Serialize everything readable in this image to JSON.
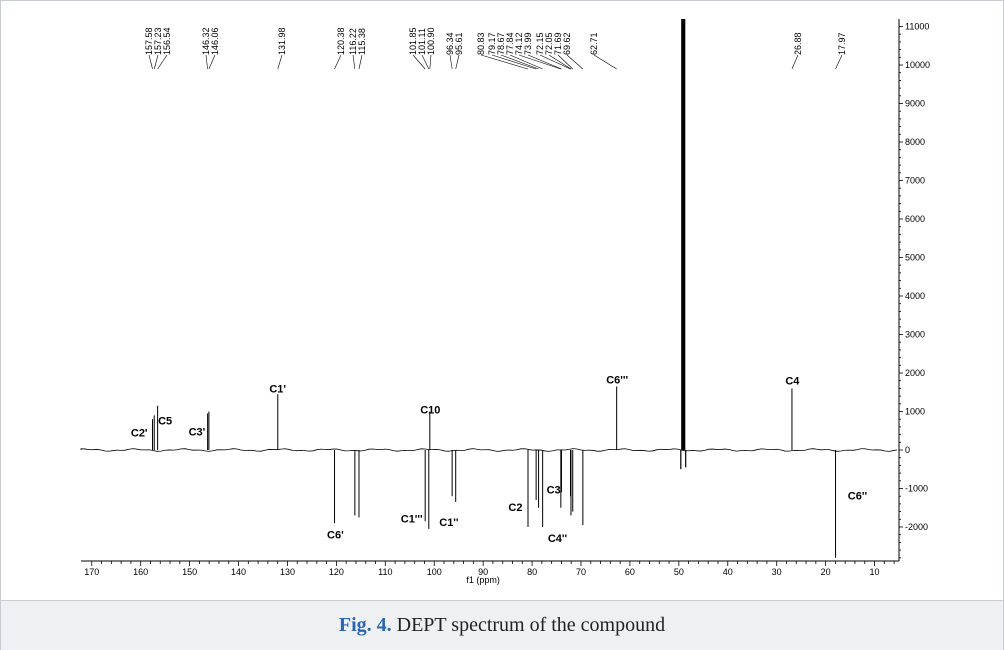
{
  "caption": {
    "figure_label": "Fig. 4.",
    "text": " DEPT spectrum of the compound"
  },
  "chart_data": {
    "type": "line",
    "title": "",
    "xlabel": "f1 (ppm)",
    "ylabel": "",
    "xlim": [
      172,
      5
    ],
    "ylim": [
      -3000,
      11200
    ],
    "x_ticks": [
      170,
      160,
      150,
      140,
      130,
      120,
      110,
      100,
      90,
      80,
      70,
      60,
      50,
      40,
      30,
      20,
      10
    ],
    "y_ticks": [
      11000,
      10000,
      9000,
      8000,
      7000,
      6000,
      5000,
      4000,
      3000,
      2000,
      1000,
      0,
      -1000,
      -2000
    ],
    "grid": false,
    "peak_list": [
      "157.58",
      "157.23",
      "156.54",
      "146.32",
      "146.06",
      "131.98",
      "120.38",
      "116.22",
      "115.38",
      "101.85",
      "101.11",
      "100.90",
      "96.34",
      "95.61",
      "80.83",
      "79.17",
      "78.67",
      "77.84",
      "74.12",
      "73.99",
      "72.15",
      "72.05",
      "71.69",
      "69.62",
      "62.71",
      "26.88",
      "17.97"
    ],
    "peaks": [
      {
        "ppm": 157.58,
        "intensity": 800
      },
      {
        "ppm": 157.23,
        "intensity": 900
      },
      {
        "ppm": 156.54,
        "intensity": 1150
      },
      {
        "ppm": 146.32,
        "intensity": 950
      },
      {
        "ppm": 146.06,
        "intensity": 1000
      },
      {
        "ppm": 131.98,
        "intensity": 1450
      },
      {
        "ppm": 120.38,
        "intensity": -1900
      },
      {
        "ppm": 116.22,
        "intensity": -1700
      },
      {
        "ppm": 115.38,
        "intensity": -1750
      },
      {
        "ppm": 101.85,
        "intensity": -1850
      },
      {
        "ppm": 101.11,
        "intensity": -2050
      },
      {
        "ppm": 100.9,
        "intensity": 1000
      },
      {
        "ppm": 96.34,
        "intensity": -1200
      },
      {
        "ppm": 95.61,
        "intensity": -1350
      },
      {
        "ppm": 80.83,
        "intensity": -2000
      },
      {
        "ppm": 79.17,
        "intensity": -1300
      },
      {
        "ppm": 78.67,
        "intensity": -1500
      },
      {
        "ppm": 77.84,
        "intensity": -2000
      },
      {
        "ppm": 74.12,
        "intensity": -1500
      },
      {
        "ppm": 73.99,
        "intensity": -1100
      },
      {
        "ppm": 72.15,
        "intensity": -1200
      },
      {
        "ppm": 72.05,
        "intensity": -1700
      },
      {
        "ppm": 71.69,
        "intensity": -1600
      },
      {
        "ppm": 69.62,
        "intensity": -1950
      },
      {
        "ppm": 62.71,
        "intensity": 1650
      },
      {
        "ppm": 26.88,
        "intensity": 1600
      },
      {
        "ppm": 17.97,
        "intensity": -2800
      }
    ],
    "solvent": [
      {
        "ppm": 49.4,
        "intensity": 11200
      },
      {
        "ppm": 49.1,
        "intensity": 11200
      },
      {
        "ppm": 48.8,
        "intensity": 11200
      },
      {
        "ppm": 49.6,
        "intensity": -500
      },
      {
        "ppm": 48.6,
        "intensity": -450
      }
    ],
    "annotations": [
      {
        "text": "C2'",
        "ppm": 160.3,
        "intensity": 350
      },
      {
        "text": "C5",
        "ppm": 155.0,
        "intensity": 660
      },
      {
        "text": "C3'",
        "ppm": 148.5,
        "intensity": 380
      },
      {
        "text": "C1'",
        "ppm": 132.0,
        "intensity": 1500
      },
      {
        "text": "C10",
        "ppm": 100.8,
        "intensity": 950
      },
      {
        "text": "C6'''",
        "ppm": 62.6,
        "intensity": 1730
      },
      {
        "text": "C4",
        "ppm": 26.8,
        "intensity": 1700
      },
      {
        "text": "C6'",
        "ppm": 120.2,
        "intensity": -2300
      },
      {
        "text": "C1'''",
        "ppm": 104.6,
        "intensity": -1880
      },
      {
        "text": "C1''",
        "ppm": 97.0,
        "intensity": -1980
      },
      {
        "text": "C2",
        "ppm": 83.4,
        "intensity": -1580
      },
      {
        "text": "C3",
        "ppm": 75.6,
        "intensity": -1130
      },
      {
        "text": "C4''",
        "ppm": 74.8,
        "intensity": -2390
      },
      {
        "text": "C6''",
        "ppm": 13.5,
        "intensity": -1280
      }
    ]
  }
}
